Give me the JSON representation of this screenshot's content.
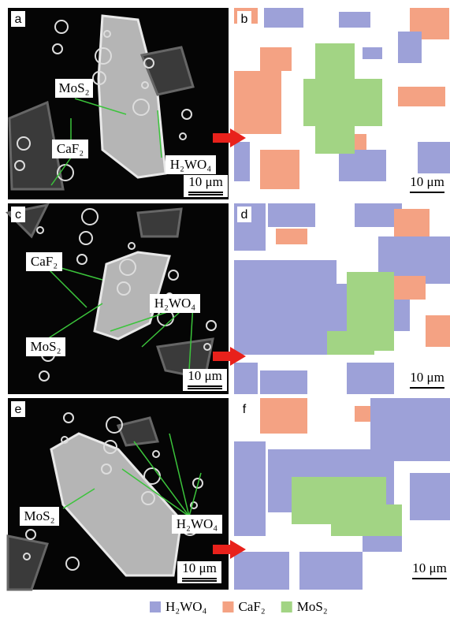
{
  "panels": [
    {
      "letter": "a",
      "labels": [
        "MoS₂",
        "CaF₂",
        "H₂WO₄"
      ],
      "scale": "10 μm"
    },
    {
      "letter": "b",
      "scale": "10 μm"
    },
    {
      "letter": "c",
      "labels": [
        "CaF₂",
        "H₂WO₄",
        "MoS₂"
      ],
      "scale": "10 μm"
    },
    {
      "letter": "d",
      "scale": "10 μm"
    },
    {
      "letter": "e",
      "labels": [
        "MoS₂",
        "H₂WO₄"
      ],
      "scale": "10 μm"
    },
    {
      "letter": "f",
      "scale": "10 μm"
    }
  ],
  "legend": [
    {
      "name": "H₂WO₄",
      "color": "#9da1d8"
    },
    {
      "name": "CaF₂",
      "color": "#f4a283"
    },
    {
      "name": "MoS₂",
      "color": "#a2d484"
    }
  ]
}
